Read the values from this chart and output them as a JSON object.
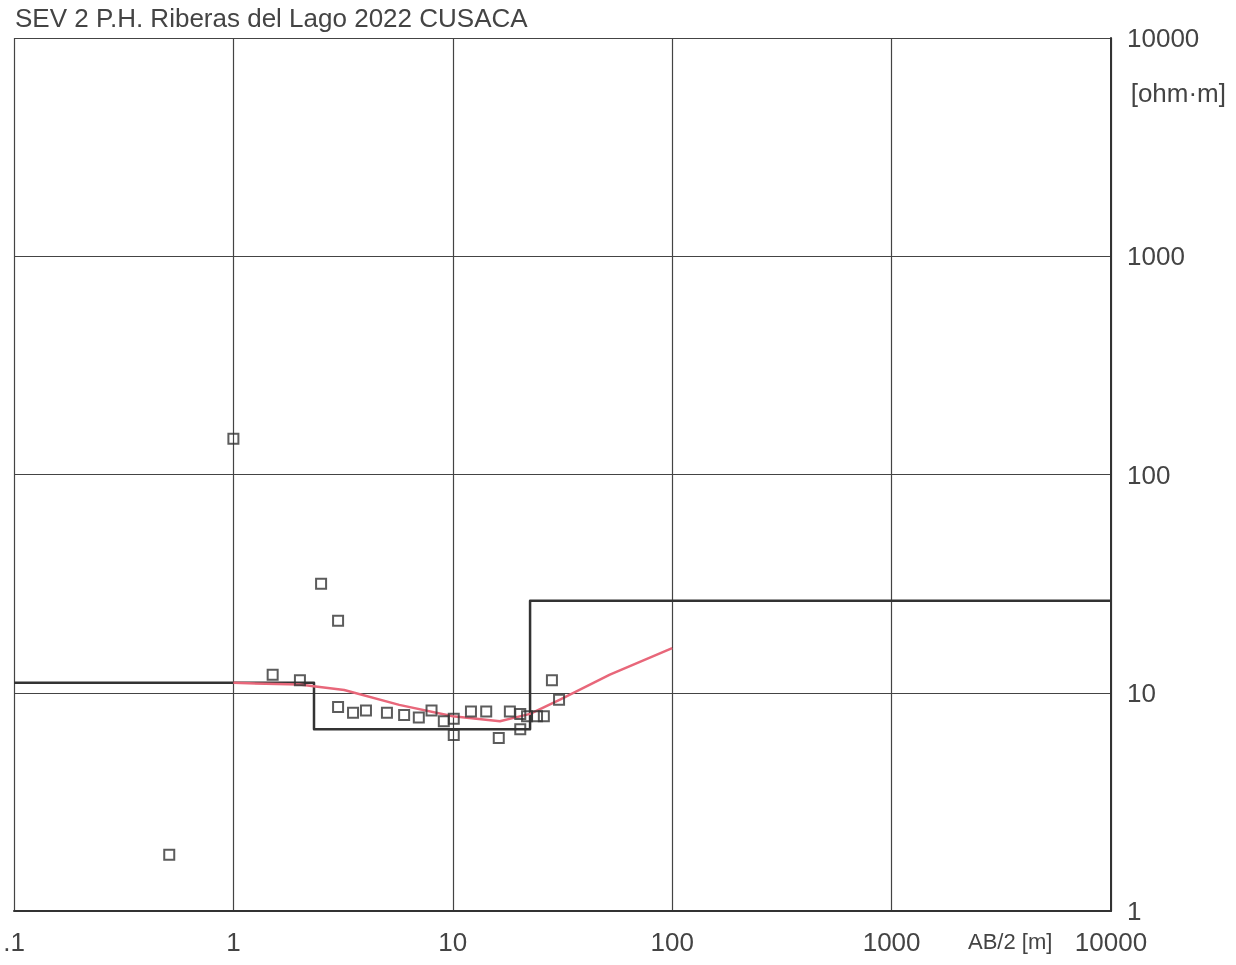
{
  "chart_data": {
    "type": "scatter",
    "title": "SEV 2 P.H. Riberas del Lago 2022 CUSACA",
    "xlabel": "AB/2 [m]",
    "ylabel": "[ohm·m]",
    "log": "xy",
    "grid": true,
    "xlim": [
      0.1,
      10000
    ],
    "ylim": [
      1,
      10000
    ],
    "xticks": [
      {
        "value": 0.1,
        "label": ".1"
      },
      1,
      10,
      100,
      1000,
      10000
    ],
    "yticks": [
      1,
      10,
      100,
      1000,
      10000
    ],
    "series": [
      {
        "type": "line",
        "color": "#333333",
        "marker": "none",
        "x": [
          0.1,
          2.33,
          2.33,
          22.5,
          22.5,
          10000
        ],
        "values": [
          11.1,
          11.1,
          6.8,
          6.8,
          26.4,
          26.4
        ]
      },
      {
        "type": "line",
        "color": "#e8677a",
        "marker": "none",
        "x": [
          1,
          2,
          3.2,
          5.7,
          10,
          16.4,
          22.5,
          30.8,
          52,
          100
        ],
        "values": [
          11.1,
          10.9,
          10.3,
          8.8,
          7.8,
          7.4,
          8.0,
          9.3,
          12.1,
          16.0
        ]
      },
      {
        "color": "#333333",
        "marker": "square",
        "x": [
          0.51,
          1.0,
          1.51,
          2.01,
          2.51,
          3.0,
          3.0,
          3.51,
          4.02,
          5.01,
          6.0,
          7.0,
          8.0,
          9.1,
          10.1,
          10.1,
          12.1,
          14.2,
          16.2,
          18.2,
          20.3,
          20.3,
          21.8,
          24.2,
          26.0,
          28.3,
          30.5
        ],
        "values": [
          1.81,
          146,
          12.1,
          11.4,
          31.6,
          21.4,
          8.6,
          8.1,
          8.3,
          8.1,
          7.9,
          7.7,
          8.3,
          7.4,
          7.6,
          6.4,
          8.2,
          8.2,
          6.2,
          8.2,
          8.0,
          6.8,
          7.8,
          7.8,
          7.8,
          11.4,
          9.3
        ]
      }
    ]
  }
}
